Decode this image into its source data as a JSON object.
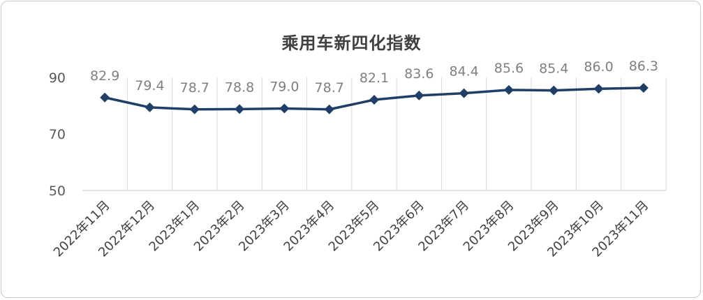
{
  "chart_data": {
    "type": "line",
    "title": "乘用车新四化指数",
    "categories": [
      "2022年11月",
      "2022年12月",
      "2023年1月",
      "2023年2月",
      "2023年3月",
      "2023年4月",
      "2023年5月",
      "2023年6月",
      "2023年7月",
      "2023年8月",
      "2023年9月",
      "2023年10月",
      "2023年11月"
    ],
    "values": [
      82.9,
      79.4,
      78.7,
      78.8,
      79.0,
      78.7,
      82.1,
      83.6,
      84.4,
      85.6,
      85.4,
      86.0,
      86.3
    ],
    "value_labels": [
      "82.9",
      "79.4",
      "78.7",
      "78.8",
      "79.0",
      "78.7",
      "82.1",
      "83.6",
      "84.4",
      "85.6",
      "85.4",
      "86.0",
      "86.3"
    ],
    "yticks": [
      "50",
      "70",
      "90"
    ],
    "ylim": [
      50,
      90
    ],
    "grid": "vertical",
    "marker": "diamond",
    "line_color": "#1f3f66",
    "grid_color": "#d9d9d9"
  }
}
